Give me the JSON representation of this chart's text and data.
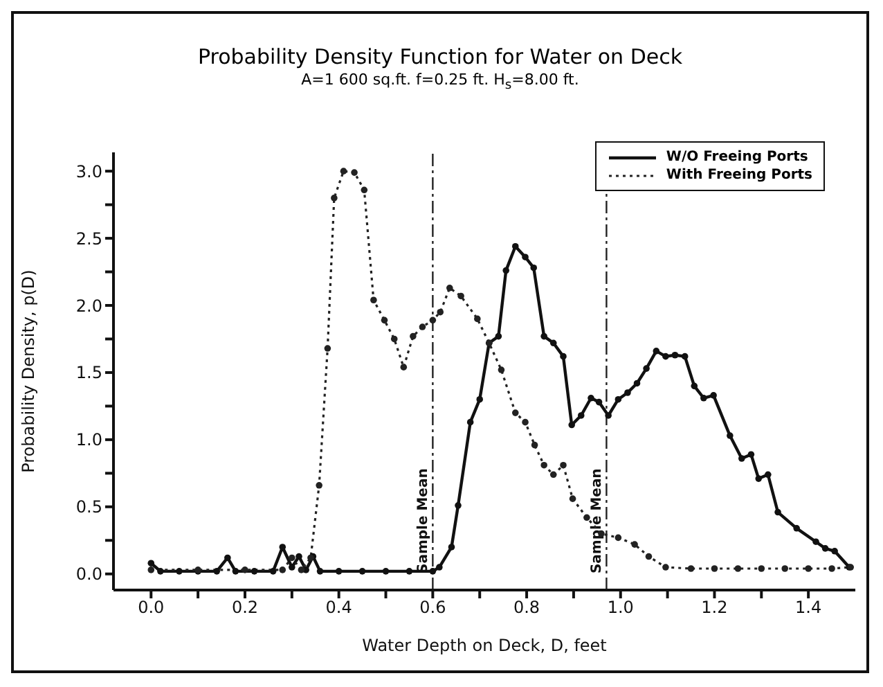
{
  "chart_data": {
    "type": "line",
    "title": "Probability Density Function for Water on Deck",
    "subtitle": "A=1 600 sq.ft.  f=0.25 ft.  H$_{s}$=8.00 ft.",
    "xlabel": "Water Depth on Deck, D, feet",
    "ylabel": "Probability Density, p(D)",
    "series": [
      {
        "name": "W/O Freeing Ports",
        "color": "#111111",
        "line_style": "solid",
        "x": [
          0,
          0.02,
          0.06,
          0.1,
          0.14,
          0.163,
          0.18,
          0.22,
          0.26,
          0.28,
          0.3,
          0.315,
          0.33,
          0.345,
          0.36,
          0.4,
          0.45,
          0.5,
          0.55,
          0.6,
          0.614,
          0.64,
          0.654,
          0.68,
          0.7,
          0.72,
          0.74,
          0.756,
          0.776,
          0.797,
          0.815,
          0.837,
          0.857,
          0.878,
          0.896,
          0.916,
          0.937,
          0.954,
          0.974,
          0.995,
          1.015,
          1.035,
          1.055,
          1.076,
          1.096,
          1.116,
          1.137,
          1.157,
          1.177,
          1.198,
          1.233,
          1.258,
          1.278,
          1.294,
          1.314,
          1.335,
          1.375,
          1.416,
          1.436,
          1.456,
          1.487
        ],
        "values": [
          0.08,
          0.02,
          0.02,
          0.02,
          0.02,
          0.12,
          0.02,
          0.02,
          0.02,
          0.2,
          0.05,
          0.13,
          0.03,
          0.13,
          0.02,
          0.02,
          0.02,
          0.02,
          0.02,
          0.02,
          0.05,
          0.2,
          0.51,
          1.13,
          1.3,
          1.72,
          1.77,
          2.26,
          2.44,
          2.36,
          2.28,
          1.77,
          1.72,
          1.62,
          1.11,
          1.18,
          1.31,
          1.28,
          1.18,
          1.3,
          1.35,
          1.42,
          1.53,
          1.66,
          1.62,
          1.63,
          1.62,
          1.4,
          1.31,
          1.33,
          1.03,
          0.86,
          0.89,
          0.71,
          0.74,
          0.46,
          0.34,
          0.24,
          0.19,
          0.17,
          0.05
        ]
      },
      {
        "name": "With Freeing Ports",
        "color": "#222222",
        "line_style": "dotted",
        "x": [
          0,
          0.1,
          0.2,
          0.28,
          0.3,
          0.32,
          0.34,
          0.358,
          0.376,
          0.39,
          0.41,
          0.433,
          0.454,
          0.474,
          0.497,
          0.518,
          0.538,
          0.558,
          0.578,
          0.6,
          0.616,
          0.636,
          0.66,
          0.695,
          0.72,
          0.746,
          0.776,
          0.797,
          0.817,
          0.837,
          0.857,
          0.878,
          0.898,
          0.928,
          0.959,
          0.995,
          1.03,
          1.06,
          1.096,
          1.15,
          1.2,
          1.25,
          1.3,
          1.35,
          1.4,
          1.45,
          1.49
        ],
        "values": [
          0.03,
          0.03,
          0.03,
          0.03,
          0.12,
          0.03,
          0.12,
          0.66,
          1.68,
          2.8,
          3.0,
          2.99,
          2.86,
          2.04,
          1.89,
          1.75,
          1.54,
          1.77,
          1.84,
          1.89,
          1.95,
          2.13,
          2.07,
          1.9,
          1.72,
          1.52,
          1.2,
          1.13,
          0.96,
          0.81,
          0.74,
          0.81,
          0.56,
          0.42,
          0.3,
          0.27,
          0.22,
          0.13,
          0.05,
          0.04,
          0.04,
          0.04,
          0.04,
          0.04,
          0.04,
          0.04,
          0.05
        ]
      }
    ],
    "xlim": [
      -0.08,
      1.5
    ],
    "xticks": [
      {
        "value": 0,
        "label": "0.0"
      },
      {
        "value": 0.1,
        "label": null
      },
      {
        "value": 0.2,
        "label": "0.2"
      },
      {
        "value": 0.3,
        "label": null
      },
      {
        "value": 0.4,
        "label": "0.4"
      },
      {
        "value": 0.5,
        "label": null
      },
      {
        "value": 0.6,
        "label": "0.6"
      },
      {
        "value": 0.7,
        "label": null
      },
      {
        "value": 0.8,
        "label": "0.8"
      },
      {
        "value": 0.9,
        "label": null
      },
      {
        "value": 1,
        "label": "1.0"
      },
      {
        "value": 1.1,
        "label": null
      },
      {
        "value": 1.2,
        "label": "1.2"
      },
      {
        "value": 1.3,
        "label": null
      },
      {
        "value": 1.4,
        "label": "1.4"
      }
    ],
    "ylim": [
      -0.12,
      3.14
    ],
    "yticks": [
      {
        "value": 0,
        "label": "0.0"
      },
      {
        "value": 0.25,
        "label": null
      },
      {
        "value": 0.5,
        "label": "0.5"
      },
      {
        "value": 0.75,
        "label": null
      },
      {
        "value": 1,
        "label": "1.0"
      },
      {
        "value": 1.25,
        "label": null
      },
      {
        "value": 1.5,
        "label": "1.5"
      },
      {
        "value": 1.75,
        "label": null
      },
      {
        "value": 2,
        "label": "2.0"
      },
      {
        "value": 2.25,
        "label": null
      },
      {
        "value": 2.5,
        "label": "2.5"
      },
      {
        "value": 2.75,
        "label": null
      },
      {
        "value": 3,
        "label": "3.0"
      }
    ],
    "ref_lines": [
      {
        "axis": "x",
        "value": 0.6,
        "label": "Sample Mean",
        "color": "#222222",
        "line_style": "dashed"
      },
      {
        "axis": "x",
        "value": 0.97,
        "label": "Sample Mean",
        "color": "#222222",
        "line_style": "dashed"
      }
    ],
    "grid": false,
    "legend": "top right",
    "marker": "circle"
  }
}
